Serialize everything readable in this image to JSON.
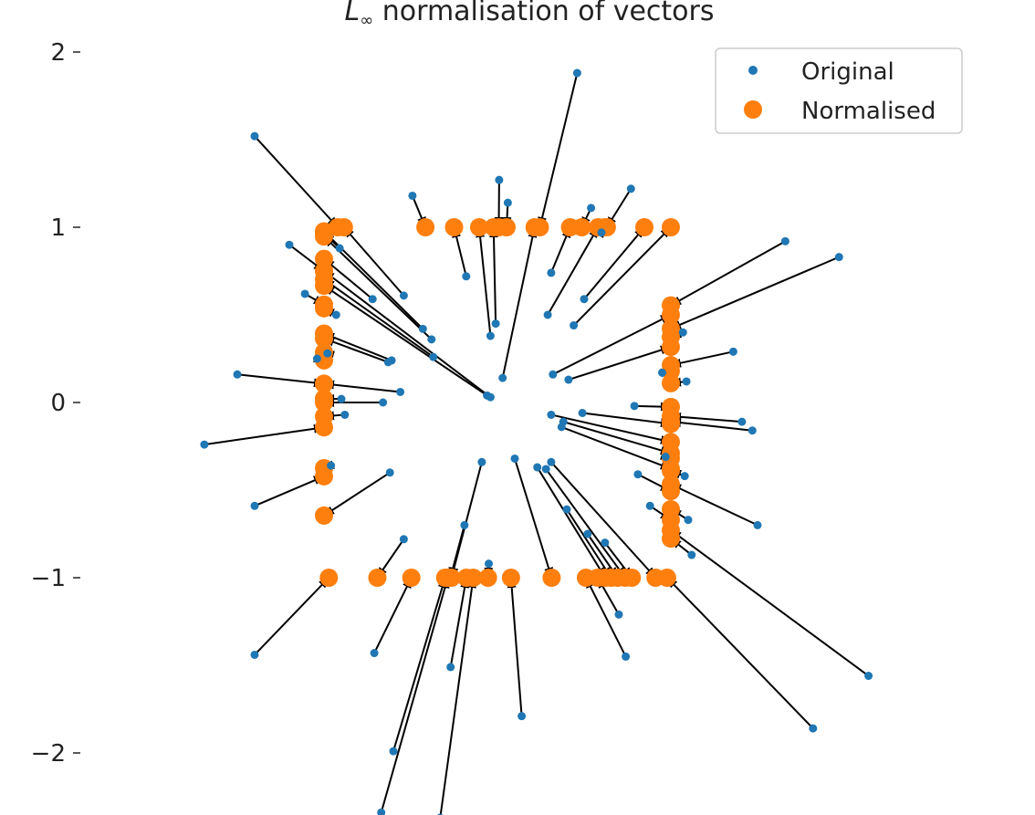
{
  "chart_data": {
    "type": "scatter",
    "title": "L∞ normalisation of vectors",
    "title_main": "L",
    "title_sub": "∞",
    "title_rest": " normalisation of vectors",
    "xlabel": "",
    "ylabel": "",
    "xlim": [
      -2.15,
      2.15
    ],
    "ylim": [
      -2.35,
      2.18
    ],
    "y_ticks": [
      -2,
      -1,
      0,
      1,
      2
    ],
    "y_tick_labels": [
      "−2",
      "−1",
      "0",
      "1",
      "2"
    ],
    "grid": false,
    "legend_position": "top-right",
    "colors": {
      "original": "#1f77b4",
      "normalised": "#ff7f0e",
      "arrow": "#000000"
    },
    "series": [
      {
        "name": "Original",
        "marker": "small-circle"
      },
      {
        "name": "Normalised",
        "marker": "large-circle"
      }
    ],
    "original_points": [
      [
        -1.69,
        -0.24
      ],
      [
        -1.5,
        0.16
      ],
      [
        -1.11,
        0.62
      ],
      [
        -1.2,
        0.9
      ],
      [
        -0.91,
        0.88
      ],
      [
        -1.4,
        1.52
      ],
      [
        -1.4,
        -0.59
      ],
      [
        -1.4,
        -1.44
      ],
      [
        -0.62,
        -0.4
      ],
      [
        -0.54,
        -0.78
      ],
      [
        -0.71,
        -1.43
      ],
      [
        -0.6,
        -1.99
      ],
      [
        -0.67,
        -2.34
      ],
      [
        -0.09,
        -0.34
      ],
      [
        -0.19,
        -0.7
      ],
      [
        -0.27,
        -1.51
      ],
      [
        -0.33,
        -2.37
      ],
      [
        -0.05,
        -0.92
      ],
      [
        0.14,
        -1.79
      ],
      [
        0.1,
        -0.32
      ],
      [
        0.23,
        -0.37
      ],
      [
        0.28,
        -0.38
      ],
      [
        0.4,
        -0.61
      ],
      [
        0.52,
        -0.75
      ],
      [
        0.62,
        -0.8
      ],
      [
        0.7,
        -1.21
      ],
      [
        0.74,
        -1.45
      ],
      [
        0.31,
        -0.34
      ],
      [
        0.31,
        -0.07
      ],
      [
        0.38,
        -0.11
      ],
      [
        0.37,
        -0.14
      ],
      [
        0.81,
        -0.41
      ],
      [
        0.88,
        -0.59
      ],
      [
        1.1,
        -0.67
      ],
      [
        1.12,
        -0.87
      ],
      [
        1.5,
        -0.7
      ],
      [
        2.14,
        -1.56
      ],
      [
        1.82,
        -1.86
      ],
      [
        0.97,
        -0.31
      ],
      [
        1.08,
        -0.42
      ],
      [
        0.49,
        -0.06
      ],
      [
        0.79,
        -0.02
      ],
      [
        1.41,
        -0.11
      ],
      [
        1.47,
        -0.16
      ],
      [
        0.41,
        0.13
      ],
      [
        1.09,
        0.12
      ],
      [
        0.95,
        0.17
      ],
      [
        1.36,
        0.29
      ],
      [
        0.32,
        0.16
      ],
      [
        1.07,
        0.4
      ],
      [
        1.97,
        0.83
      ],
      [
        1.66,
        0.92
      ],
      [
        0.44,
        0.44
      ],
      [
        0.5,
        0.59
      ],
      [
        0.29,
        0.5
      ],
      [
        0.6,
        0.97
      ],
      [
        0.54,
        1.11
      ],
      [
        0.77,
        1.22
      ],
      [
        0.31,
        0.74
      ],
      [
        0.46,
        1.88
      ],
      [
        0.06,
        1.14
      ],
      [
        0.01,
        1.27
      ],
      [
        0.03,
        0.14
      ],
      [
        -0.01,
        0.45
      ],
      [
        -0.04,
        0.38
      ],
      [
        -0.18,
        0.72
      ],
      [
        -0.49,
        1.18
      ],
      [
        -0.37,
        0.26
      ],
      [
        -0.43,
        0.42
      ],
      [
        -0.38,
        0.36
      ],
      [
        -0.54,
        0.61
      ],
      [
        -0.61,
        0.24
      ],
      [
        -0.72,
        0.59
      ],
      [
        -0.93,
        0.5
      ],
      [
        -0.63,
        0.23
      ],
      [
        -0.56,
        0.06
      ],
      [
        -0.66,
        0.0
      ],
      [
        -0.9,
        0.02
      ],
      [
        -0.88,
        -0.07
      ],
      [
        -0.06,
        0.04
      ],
      [
        -0.04,
        0.03
      ],
      [
        -0.98,
        0.28
      ],
      [
        -0.96,
        -0.36
      ],
      [
        -1.04,
        0.25
      ]
    ]
  }
}
